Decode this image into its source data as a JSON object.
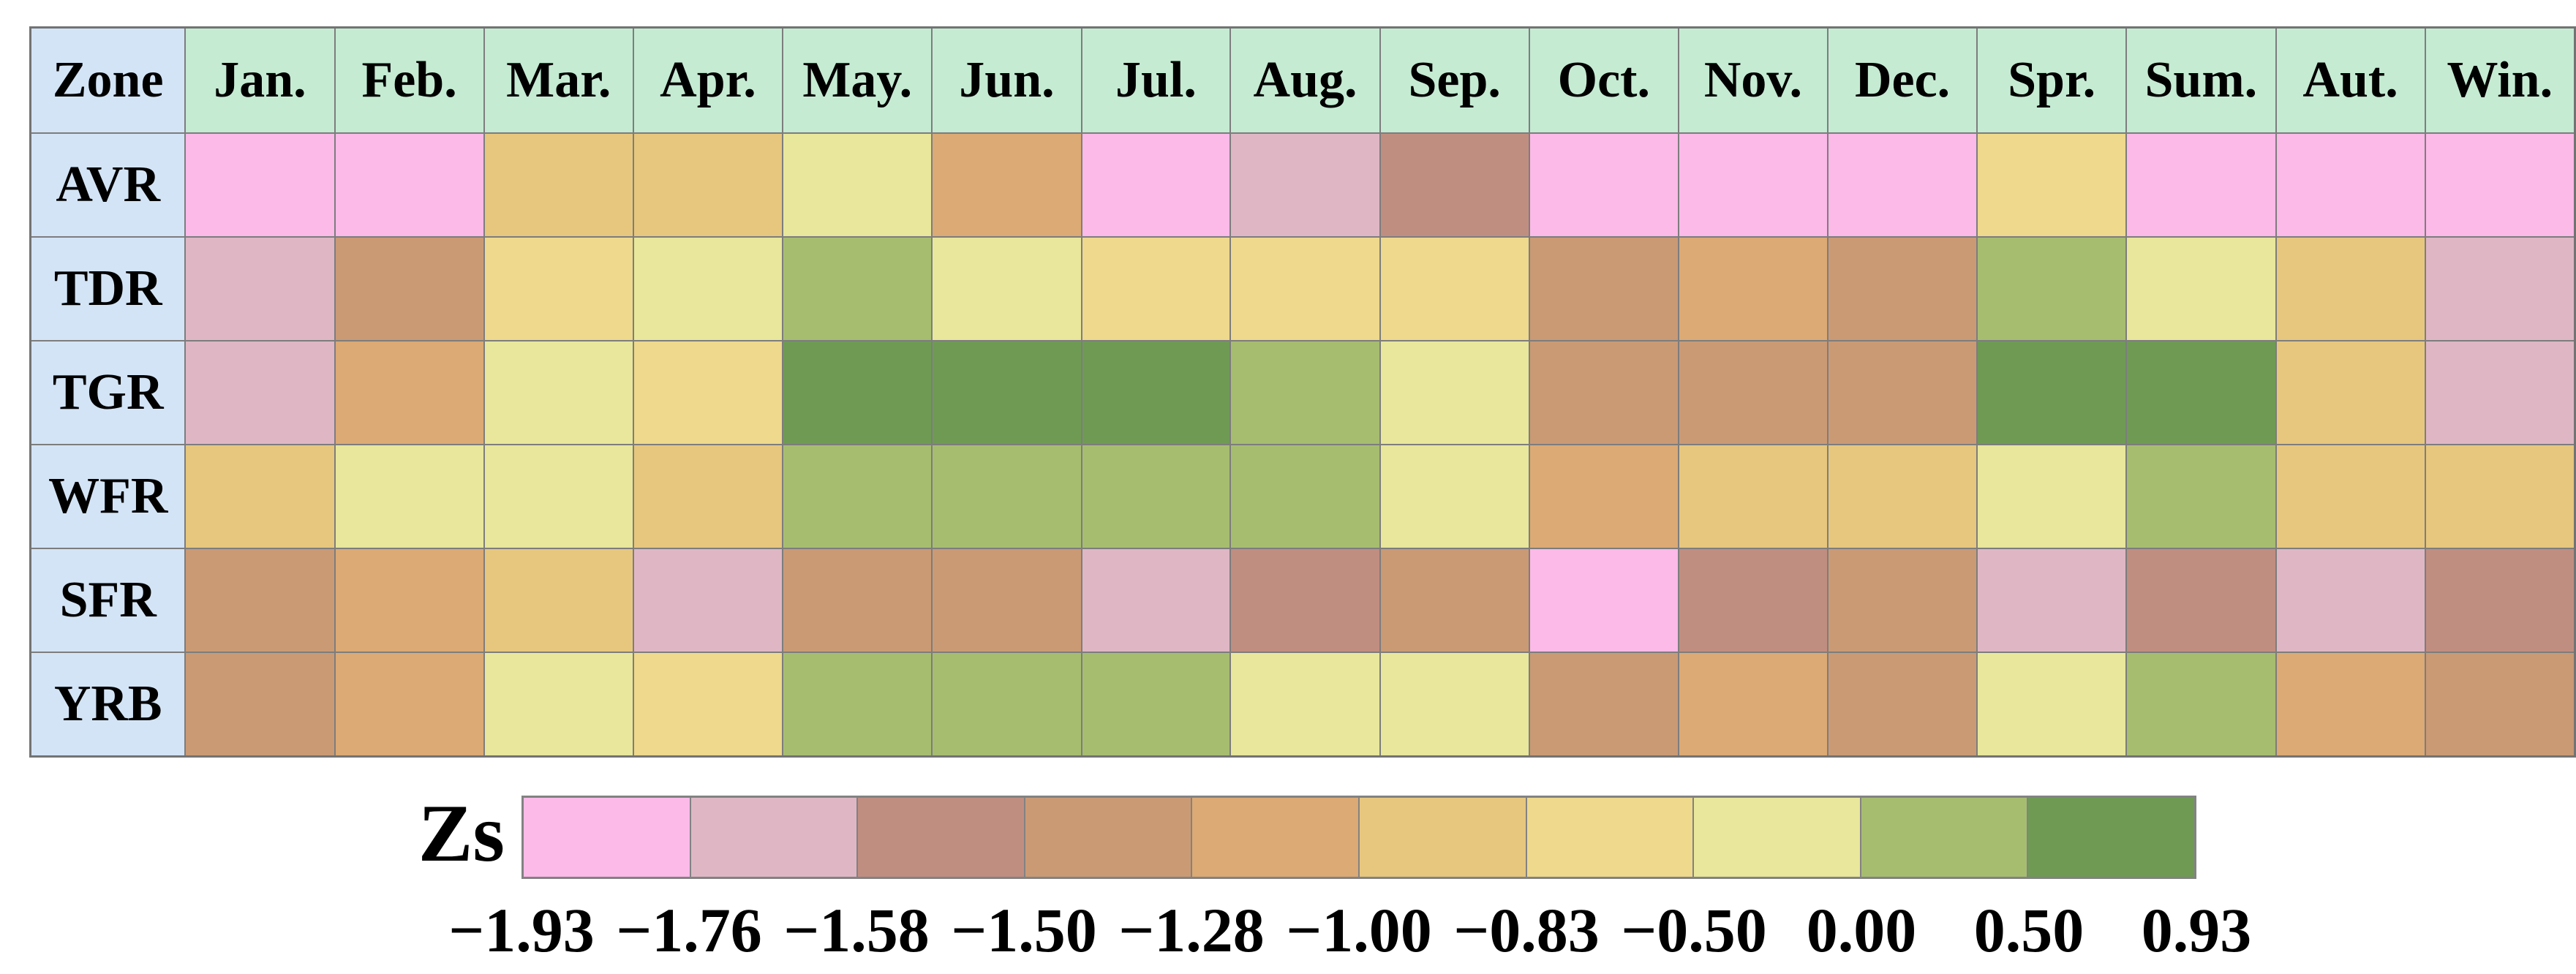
{
  "chart_data": {
    "type": "heatmap",
    "legend_label": "Zs",
    "corner_label": "Zone",
    "columns": [
      "Jan.",
      "Feb.",
      "Mar.",
      "Apr.",
      "May.",
      "Jun.",
      "Jul.",
      "Aug.",
      "Sep.",
      "Oct.",
      "Nov.",
      "Dec.",
      "Spr.",
      "Sum.",
      "Aut.",
      "Win."
    ],
    "rows": [
      "AVR",
      "TDR",
      "TGR",
      "WFR",
      "SFR",
      "YRB"
    ],
    "palette": [
      "#fbbae8",
      "#dfb7c4",
      "#c08e81",
      "#ca9a75",
      "#dcaa74",
      "#e7c77e",
      "#eed98c",
      "#e8e79b",
      "#a6bd70",
      "#6f9a54"
    ],
    "legend_boundaries": [
      "−1.93",
      "−1.76",
      "−1.58",
      "−1.50",
      "−1.28",
      "−1.00",
      "−0.83",
      "−0.50",
      "0.00",
      "0.50",
      "0.93"
    ],
    "cells_bin_index": [
      [
        0,
        0,
        5,
        5,
        7,
        4,
        0,
        1,
        2,
        0,
        0,
        0,
        6,
        0,
        0,
        0
      ],
      [
        1,
        3,
        6,
        7,
        8,
        7,
        6,
        6,
        6,
        3,
        4,
        3,
        8,
        7,
        5,
        1
      ],
      [
        1,
        4,
        7,
        6,
        9,
        9,
        9,
        8,
        7,
        3,
        3,
        3,
        9,
        9,
        5,
        1
      ],
      [
        5,
        7,
        7,
        5,
        8,
        8,
        8,
        8,
        7,
        4,
        5,
        5,
        7,
        8,
        5,
        5
      ],
      [
        3,
        4,
        5,
        1,
        3,
        3,
        1,
        2,
        3,
        0,
        2,
        3,
        1,
        2,
        1,
        2
      ],
      [
        3,
        4,
        7,
        6,
        8,
        8,
        8,
        7,
        7,
        3,
        4,
        3,
        7,
        8,
        4,
        3
      ]
    ],
    "layout": {
      "legend_position": "bottom",
      "grid": "on",
      "header_bg": "#c5ebd3",
      "row_label_bg": "#d3e4f6",
      "grid_line_color": "#7d7d7d"
    }
  }
}
